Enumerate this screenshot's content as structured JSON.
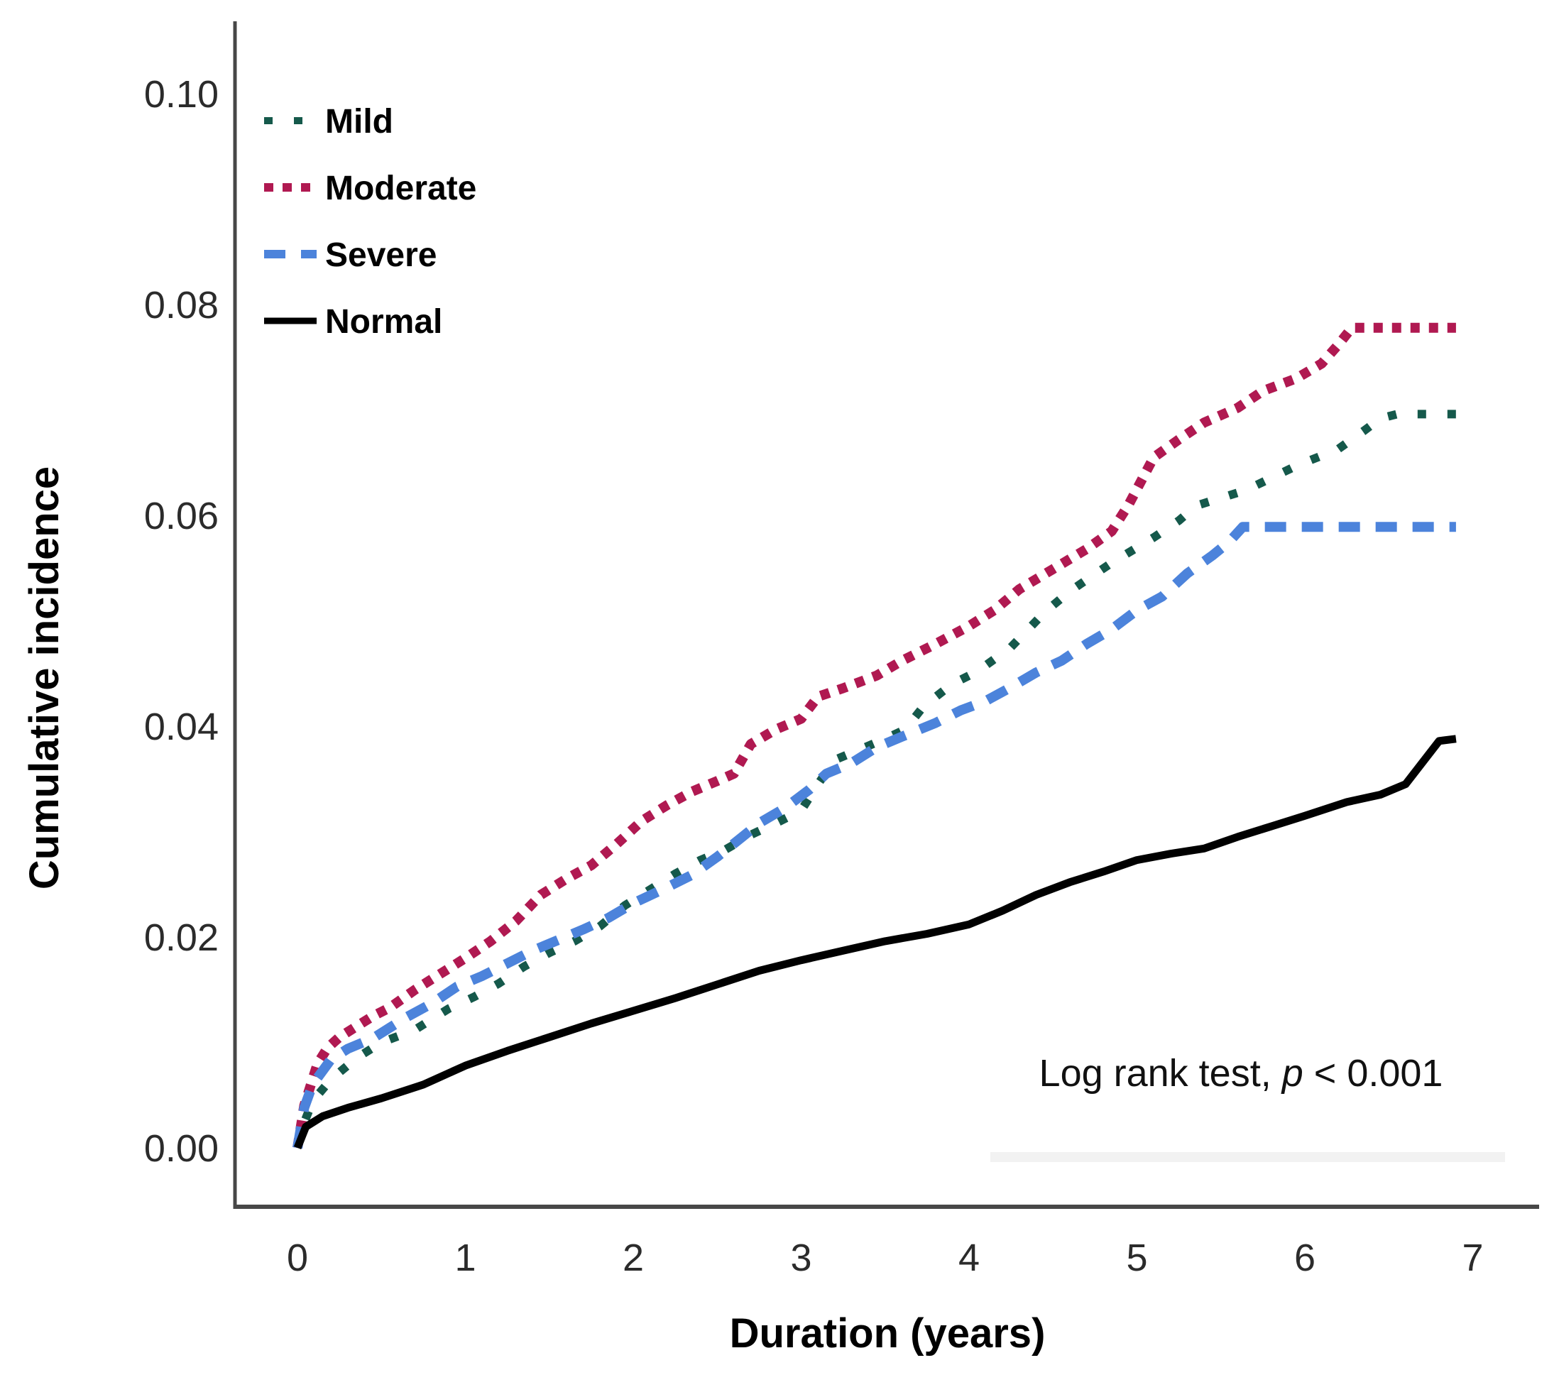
{
  "figure": {
    "background": "#ffffff",
    "axis_color": "#474747",
    "faint_rule_color": "#f2f2f2"
  },
  "chart_data": {
    "type": "line",
    "title": "",
    "xlabel": "Duration (years)",
    "ylabel": "Cumulative incidence",
    "xlim": [
      0,
      7
    ],
    "ylim": [
      0,
      0.1
    ],
    "x_ticks": [
      "0",
      "1",
      "2",
      "3",
      "4",
      "5",
      "6",
      "7"
    ],
    "y_ticks": [
      "0.00",
      "0.02",
      "0.04",
      "0.06",
      "0.08",
      "0.10"
    ],
    "grid": false,
    "legend_position": "upper-left-inside",
    "annotation": {
      "prefix": "Log rank test, ",
      "italic": "p",
      "suffix": " < 0.001"
    },
    "series": [
      {
        "name": "Mild",
        "color": "#15594b",
        "style": "dotted",
        "points": [
          [
            0,
            0
          ],
          [
            0.03,
            0.002
          ],
          [
            0.08,
            0.004
          ],
          [
            0.12,
            0.005
          ],
          [
            0.2,
            0.0065
          ],
          [
            0.35,
            0.0085
          ],
          [
            0.5,
            0.01
          ],
          [
            0.6,
            0.0106
          ],
          [
            0.7,
            0.0112
          ],
          [
            0.8,
            0.0122
          ],
          [
            0.9,
            0.0132
          ],
          [
            1.05,
            0.0143
          ],
          [
            1.2,
            0.0156
          ],
          [
            1.35,
            0.0172
          ],
          [
            1.5,
            0.0185
          ],
          [
            1.65,
            0.0196
          ],
          [
            1.8,
            0.021
          ],
          [
            1.95,
            0.023
          ],
          [
            2.1,
            0.0245
          ],
          [
            2.25,
            0.026
          ],
          [
            2.4,
            0.0273
          ],
          [
            2.55,
            0.0283
          ],
          [
            2.7,
            0.0297
          ],
          [
            2.85,
            0.0308
          ],
          [
            3.0,
            0.032
          ],
          [
            3.1,
            0.0345
          ],
          [
            3.2,
            0.0368
          ],
          [
            3.35,
            0.0378
          ],
          [
            3.5,
            0.0388
          ],
          [
            3.62,
            0.0397
          ],
          [
            3.73,
            0.0419
          ],
          [
            3.9,
            0.044
          ],
          [
            4.05,
            0.0452
          ],
          [
            4.25,
            0.0475
          ],
          [
            4.45,
            0.0508
          ],
          [
            4.6,
            0.0528
          ],
          [
            4.85,
            0.0555
          ],
          [
            5.1,
            0.0579
          ],
          [
            5.25,
            0.0595
          ],
          [
            5.35,
            0.0609
          ],
          [
            5.65,
            0.0624
          ],
          [
            5.95,
            0.0647
          ],
          [
            6.2,
            0.0663
          ],
          [
            6.35,
            0.068
          ],
          [
            6.45,
            0.0692
          ],
          [
            6.55,
            0.0696
          ],
          [
            6.9,
            0.0696
          ]
        ]
      },
      {
        "name": "Moderate",
        "color": "#b01951",
        "style": "dense-dotted",
        "points": [
          [
            0,
            0
          ],
          [
            0.04,
            0.004
          ],
          [
            0.08,
            0.006
          ],
          [
            0.12,
            0.008
          ],
          [
            0.18,
            0.0095
          ],
          [
            0.25,
            0.0105
          ],
          [
            0.35,
            0.0115
          ],
          [
            0.45,
            0.0125
          ],
          [
            0.55,
            0.0133
          ],
          [
            0.7,
            0.015
          ],
          [
            0.85,
            0.0165
          ],
          [
            1.0,
            0.018
          ],
          [
            1.15,
            0.0196
          ],
          [
            1.3,
            0.0215
          ],
          [
            1.45,
            0.024
          ],
          [
            1.6,
            0.0255
          ],
          [
            1.75,
            0.0268
          ],
          [
            1.9,
            0.0288
          ],
          [
            2.05,
            0.031
          ],
          [
            2.2,
            0.0325
          ],
          [
            2.35,
            0.0338
          ],
          [
            2.5,
            0.0348
          ],
          [
            2.6,
            0.0355
          ],
          [
            2.7,
            0.0383
          ],
          [
            2.85,
            0.0397
          ],
          [
            3.0,
            0.0407
          ],
          [
            3.1,
            0.0428
          ],
          [
            3.25,
            0.0436
          ],
          [
            3.45,
            0.0448
          ],
          [
            3.6,
            0.0462
          ],
          [
            3.8,
            0.0478
          ],
          [
            4.0,
            0.0495
          ],
          [
            4.15,
            0.051
          ],
          [
            4.3,
            0.053
          ],
          [
            4.5,
            0.0549
          ],
          [
            4.7,
            0.0568
          ],
          [
            4.85,
            0.0585
          ],
          [
            4.95,
            0.061
          ],
          [
            5.1,
            0.0655
          ],
          [
            5.25,
            0.0672
          ],
          [
            5.4,
            0.0688
          ],
          [
            5.6,
            0.0702
          ],
          [
            5.75,
            0.0718
          ],
          [
            5.95,
            0.073
          ],
          [
            6.1,
            0.0744
          ],
          [
            6.2,
            0.0762
          ],
          [
            6.28,
            0.0778
          ],
          [
            6.9,
            0.0778
          ]
        ]
      },
      {
        "name": "Severe",
        "color": "#4c83db",
        "style": "dashed",
        "points": [
          [
            0,
            0
          ],
          [
            0.04,
            0.0038
          ],
          [
            0.09,
            0.006
          ],
          [
            0.2,
            0.0084
          ],
          [
            0.3,
            0.0094
          ],
          [
            0.45,
            0.0104
          ],
          [
            0.55,
            0.0114
          ],
          [
            0.65,
            0.0124
          ],
          [
            0.8,
            0.0137
          ],
          [
            0.95,
            0.0153
          ],
          [
            1.1,
            0.0163
          ],
          [
            1.25,
            0.0175
          ],
          [
            1.4,
            0.0187
          ],
          [
            1.55,
            0.0197
          ],
          [
            1.7,
            0.0207
          ],
          [
            1.85,
            0.0218
          ],
          [
            2.0,
            0.0232
          ],
          [
            2.2,
            0.0247
          ],
          [
            2.35,
            0.0259
          ],
          [
            2.5,
            0.0276
          ],
          [
            2.65,
            0.0295
          ],
          [
            2.75,
            0.0308
          ],
          [
            2.9,
            0.0322
          ],
          [
            3.05,
            0.034
          ],
          [
            3.15,
            0.0355
          ],
          [
            3.3,
            0.0365
          ],
          [
            3.45,
            0.038
          ],
          [
            3.6,
            0.039
          ],
          [
            3.8,
            0.0403
          ],
          [
            3.95,
            0.0415
          ],
          [
            4.1,
            0.0424
          ],
          [
            4.25,
            0.0437
          ],
          [
            4.4,
            0.0451
          ],
          [
            4.55,
            0.0462
          ],
          [
            4.7,
            0.0478
          ],
          [
            4.85,
            0.0492
          ],
          [
            5.0,
            0.051
          ],
          [
            5.15,
            0.0523
          ],
          [
            5.3,
            0.0545
          ],
          [
            5.45,
            0.0562
          ],
          [
            5.55,
            0.0575
          ],
          [
            5.63,
            0.0589
          ],
          [
            6.9,
            0.0589
          ]
        ]
      },
      {
        "name": "Normal",
        "color": "#000000",
        "style": "solid",
        "points": [
          [
            0,
            0
          ],
          [
            0.05,
            0.002
          ],
          [
            0.15,
            0.003
          ],
          [
            0.3,
            0.0038
          ],
          [
            0.5,
            0.0047
          ],
          [
            0.75,
            0.006
          ],
          [
            1.0,
            0.0078
          ],
          [
            1.25,
            0.0092
          ],
          [
            1.5,
            0.0105
          ],
          [
            1.75,
            0.0118
          ],
          [
            2.0,
            0.013
          ],
          [
            2.25,
            0.0142
          ],
          [
            2.5,
            0.0155
          ],
          [
            2.75,
            0.0168
          ],
          [
            3.0,
            0.0178
          ],
          [
            3.25,
            0.0187
          ],
          [
            3.5,
            0.0196
          ],
          [
            3.75,
            0.0203
          ],
          [
            4.0,
            0.0212
          ],
          [
            4.2,
            0.0225
          ],
          [
            4.4,
            0.024
          ],
          [
            4.6,
            0.0252
          ],
          [
            4.8,
            0.0262
          ],
          [
            5.0,
            0.0273
          ],
          [
            5.2,
            0.0279
          ],
          [
            5.4,
            0.0284
          ],
          [
            5.6,
            0.0295
          ],
          [
            5.8,
            0.0305
          ],
          [
            6.0,
            0.0315
          ],
          [
            6.25,
            0.0328
          ],
          [
            6.45,
            0.0335
          ],
          [
            6.6,
            0.0345
          ],
          [
            6.8,
            0.0386
          ],
          [
            6.9,
            0.0388
          ]
        ]
      }
    ]
  }
}
